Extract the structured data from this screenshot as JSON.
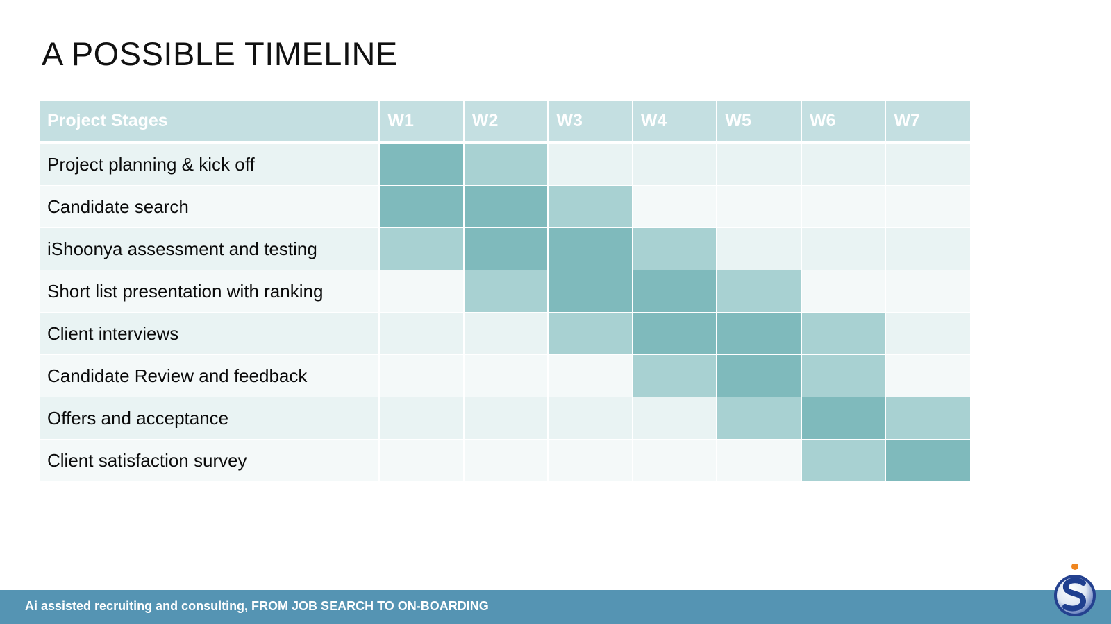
{
  "title": "A POSSIBLE TIMELINE",
  "table": {
    "header": [
      "Project Stages",
      "W1",
      "W2",
      "W3",
      "W4",
      "W5",
      "W6",
      "W7"
    ],
    "rows": [
      {
        "stage": "Project planning & kick off",
        "weeks": [
          2,
          1,
          0,
          0,
          0,
          0,
          0
        ]
      },
      {
        "stage": "Candidate search",
        "weeks": [
          2,
          2,
          1,
          0,
          0,
          0,
          0
        ]
      },
      {
        "stage": "iShoonya assessment and testing",
        "weeks": [
          1,
          2,
          2,
          1,
          0,
          0,
          0
        ]
      },
      {
        "stage": "Short list presentation with ranking",
        "weeks": [
          0,
          1,
          2,
          2,
          1,
          0,
          0
        ]
      },
      {
        "stage": "Client interviews",
        "weeks": [
          0,
          0,
          1,
          2,
          2,
          1,
          0
        ]
      },
      {
        "stage": "Candidate Review and feedback",
        "weeks": [
          0,
          0,
          0,
          1,
          2,
          1,
          0
        ]
      },
      {
        "stage": "Offers and acceptance",
        "weeks": [
          0,
          0,
          0,
          0,
          1,
          2,
          1
        ]
      },
      {
        "stage": "Client satisfaction survey",
        "weeks": [
          0,
          0,
          0,
          0,
          0,
          1,
          2
        ]
      }
    ]
  },
  "footer": {
    "text": "Ai assisted recruiting and consulting, FROM JOB SEARCH TO ON-BOARDING"
  },
  "logo": {
    "icon": "company-s-logo"
  },
  "colors": {
    "header_bg": "#c4dfe1",
    "intensity_high": "#7fbabc",
    "intensity_medium": "#a8d1d2",
    "row_odd": "#e9f3f3",
    "row_even": "#f4f9f9",
    "footer_bg": "#5594b3",
    "logo_dot": "#f0861f",
    "logo_blue": "#1f3f8f"
  }
}
